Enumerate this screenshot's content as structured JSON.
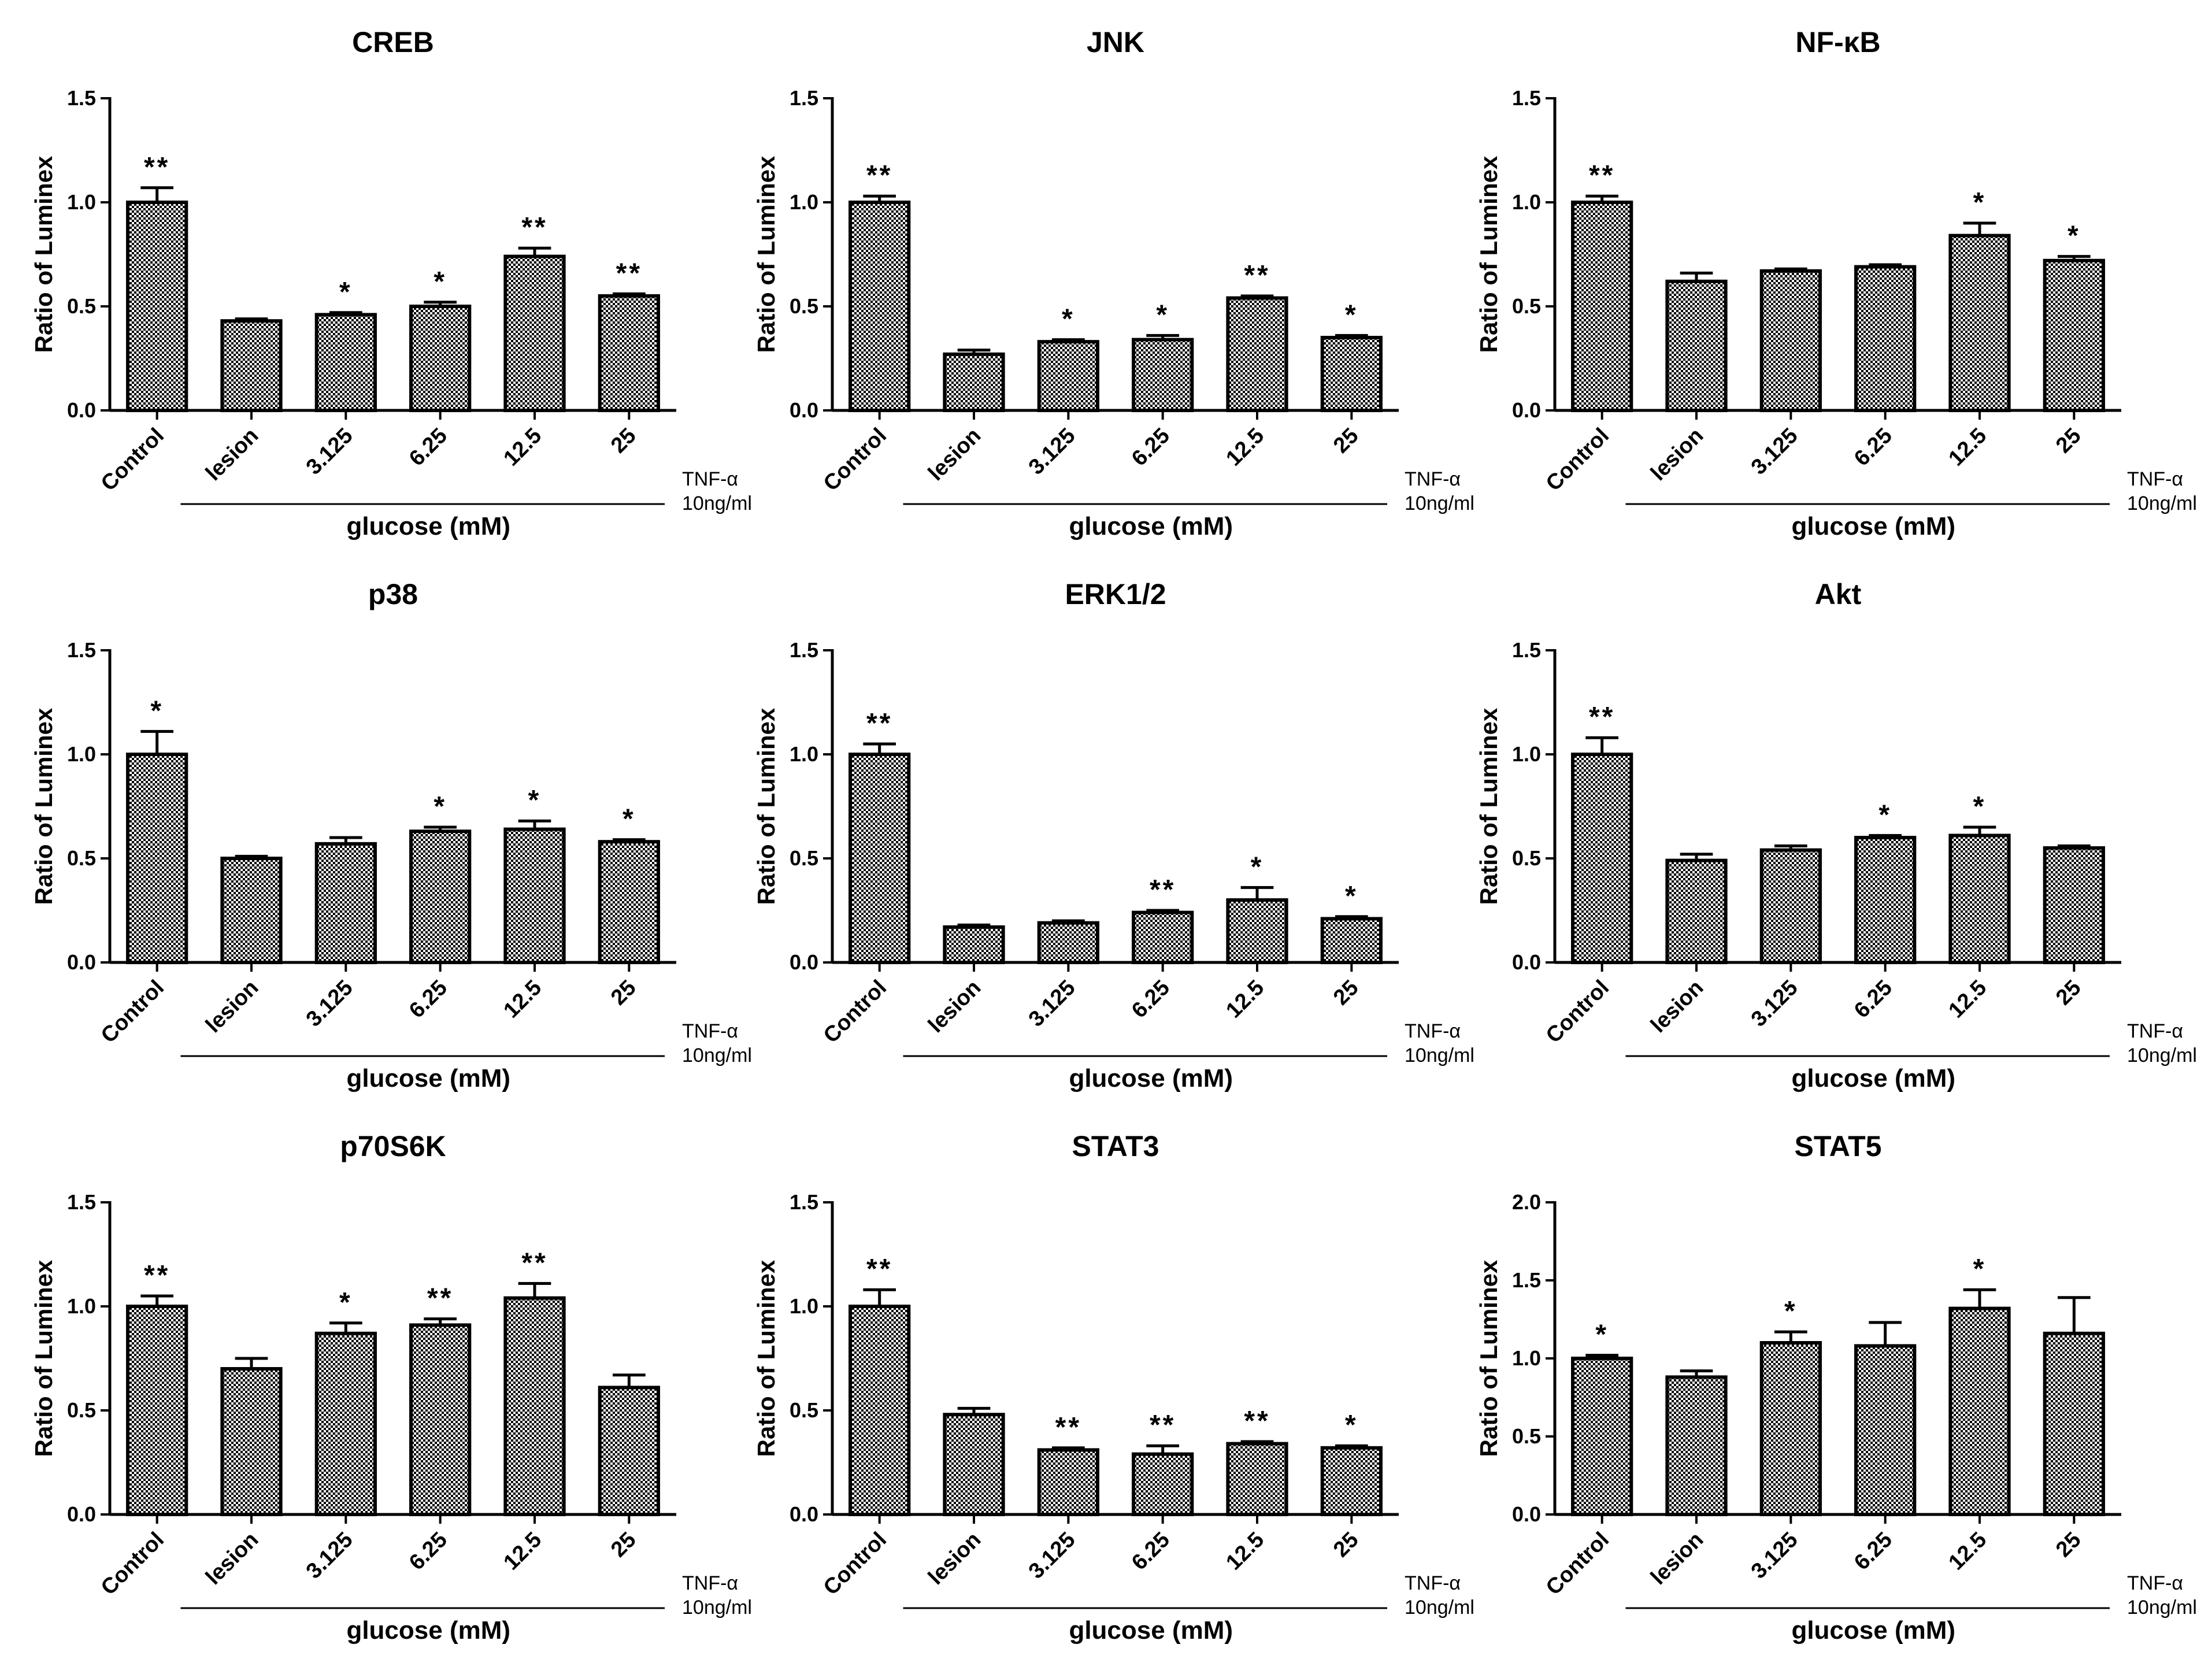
{
  "figure": {
    "ylabel": "Ratio of Luminex",
    "group_label": "glucose (mM)",
    "treatment_line1": "TNF-α",
    "treatment_line2": "10ng/ml",
    "categories": [
      "Control",
      "lesion",
      "3.125",
      "6.25",
      "12.5",
      "25"
    ]
  },
  "colors": {
    "bar_pattern_dark": "#000000",
    "bar_pattern_light": "#ffffff",
    "axis": "#000000"
  },
  "chart_data": [
    {
      "type": "bar",
      "title": "CREB",
      "ylabel": "Ratio of Luminex",
      "xlabel": "glucose (mM)",
      "categories": [
        "Control",
        "lesion",
        "3.125",
        "6.25",
        "12.5",
        "25"
      ],
      "values": [
        1.0,
        0.43,
        0.46,
        0.5,
        0.74,
        0.55
      ],
      "errors": [
        0.07,
        0.01,
        0.01,
        0.02,
        0.04,
        0.01
      ],
      "significance": [
        "**",
        "",
        "*",
        "*",
        "**",
        "**"
      ],
      "ylim": [
        0,
        1.5
      ],
      "yticks": [
        "0.0",
        "0.5",
        "1.0",
        "1.5"
      ]
    },
    {
      "type": "bar",
      "title": "JNK",
      "ylabel": "Ratio of Luminex",
      "xlabel": "glucose (mM)",
      "categories": [
        "Control",
        "lesion",
        "3.125",
        "6.25",
        "12.5",
        "25"
      ],
      "values": [
        1.0,
        0.27,
        0.33,
        0.34,
        0.54,
        0.35
      ],
      "errors": [
        0.03,
        0.02,
        0.01,
        0.02,
        0.01,
        0.01
      ],
      "significance": [
        "**",
        "",
        "*",
        "*",
        "**",
        "*"
      ],
      "ylim": [
        0,
        1.5
      ],
      "yticks": [
        "0.0",
        "0.5",
        "1.0",
        "1.5"
      ]
    },
    {
      "type": "bar",
      "title": "NF-κB",
      "ylabel": "Ratio of Luminex",
      "xlabel": "glucose (mM)",
      "categories": [
        "Control",
        "lesion",
        "3.125",
        "6.25",
        "12.5",
        "25"
      ],
      "values": [
        1.0,
        0.62,
        0.67,
        0.69,
        0.84,
        0.72
      ],
      "errors": [
        0.03,
        0.04,
        0.01,
        0.01,
        0.06,
        0.02
      ],
      "significance": [
        "**",
        "",
        "",
        "",
        "*",
        "*"
      ],
      "ylim": [
        0,
        1.5
      ],
      "yticks": [
        "0.0",
        "0.5",
        "1.0",
        "1.5"
      ]
    },
    {
      "type": "bar",
      "title": "p38",
      "ylabel": "Ratio of Luminex",
      "xlabel": "glucose (mM)",
      "categories": [
        "Control",
        "lesion",
        "3.125",
        "6.25",
        "12.5",
        "25"
      ],
      "values": [
        1.0,
        0.5,
        0.57,
        0.63,
        0.64,
        0.58
      ],
      "errors": [
        0.11,
        0.01,
        0.03,
        0.02,
        0.04,
        0.01
      ],
      "significance": [
        "*",
        "",
        "",
        "*",
        "*",
        "*"
      ],
      "ylim": [
        0,
        1.5
      ],
      "yticks": [
        "0.0",
        "0.5",
        "1.0",
        "1.5"
      ]
    },
    {
      "type": "bar",
      "title": "ERK1/2",
      "ylabel": "Ratio of Luminex",
      "xlabel": "glucose (mM)",
      "categories": [
        "Control",
        "lesion",
        "3.125",
        "6.25",
        "12.5",
        "25"
      ],
      "values": [
        1.0,
        0.17,
        0.19,
        0.24,
        0.3,
        0.21
      ],
      "errors": [
        0.05,
        0.01,
        0.01,
        0.01,
        0.06,
        0.01
      ],
      "significance": [
        "**",
        "",
        "",
        "**",
        "*",
        "*"
      ],
      "ylim": [
        0,
        1.5
      ],
      "yticks": [
        "0.0",
        "0.5",
        "1.0",
        "1.5"
      ]
    },
    {
      "type": "bar",
      "title": "Akt",
      "ylabel": "Ratio of Luminex",
      "xlabel": "glucose (mM)",
      "categories": [
        "Control",
        "lesion",
        "3.125",
        "6.25",
        "12.5",
        "25"
      ],
      "values": [
        1.0,
        0.49,
        0.54,
        0.6,
        0.61,
        0.55
      ],
      "errors": [
        0.08,
        0.03,
        0.02,
        0.01,
        0.04,
        0.01
      ],
      "significance": [
        "**",
        "",
        "",
        "*",
        "*",
        ""
      ],
      "ylim": [
        0,
        1.5
      ],
      "yticks": [
        "0.0",
        "0.5",
        "1.0",
        "1.5"
      ]
    },
    {
      "type": "bar",
      "title": "p70S6K",
      "ylabel": "Ratio of Luminex",
      "xlabel": "glucose (mM)",
      "categories": [
        "Control",
        "lesion",
        "3.125",
        "6.25",
        "12.5",
        "25"
      ],
      "values": [
        1.0,
        0.7,
        0.87,
        0.91,
        1.04,
        0.61
      ],
      "errors": [
        0.05,
        0.05,
        0.05,
        0.03,
        0.07,
        0.06
      ],
      "significance": [
        "**",
        "",
        "*",
        "**",
        "**",
        ""
      ],
      "ylim": [
        0,
        1.5
      ],
      "yticks": [
        "0.0",
        "0.5",
        "1.0",
        "1.5"
      ]
    },
    {
      "type": "bar",
      "title": "STAT3",
      "ylabel": "Ratio of Luminex",
      "xlabel": "glucose (mM)",
      "categories": [
        "Control",
        "lesion",
        "3.125",
        "6.25",
        "12.5",
        "25"
      ],
      "values": [
        1.0,
        0.48,
        0.31,
        0.29,
        0.34,
        0.32
      ],
      "errors": [
        0.08,
        0.03,
        0.01,
        0.04,
        0.01,
        0.01
      ],
      "significance": [
        "**",
        "",
        "**",
        "**",
        "**",
        "*"
      ],
      "ylim": [
        0,
        1.5
      ],
      "yticks": [
        "0.0",
        "0.5",
        "1.0",
        "1.5"
      ]
    },
    {
      "type": "bar",
      "title": "STAT5",
      "ylabel": "Ratio of Luminex",
      "xlabel": "glucose (mM)",
      "categories": [
        "Control",
        "lesion",
        "3.125",
        "6.25",
        "12.5",
        "25"
      ],
      "values": [
        1.0,
        0.88,
        1.1,
        1.08,
        1.32,
        1.16
      ],
      "errors": [
        0.02,
        0.04,
        0.07,
        0.15,
        0.12,
        0.23
      ],
      "significance": [
        "*",
        "",
        "*",
        "",
        "*",
        ""
      ],
      "ylim": [
        0,
        2.0
      ],
      "yticks": [
        "0.0",
        "0.5",
        "1.0",
        "1.5",
        "2.0"
      ]
    }
  ]
}
